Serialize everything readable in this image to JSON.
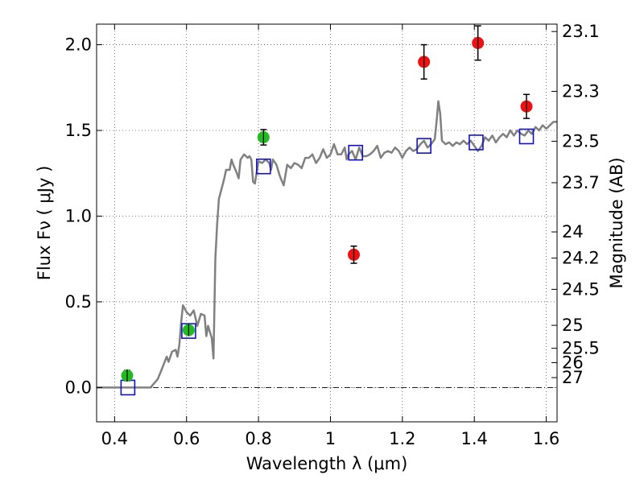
{
  "chart_data": {
    "type": "scatter",
    "title": "",
    "xlabel": "Wavelength  λ (μm)",
    "ylabel": "Flux  Fν  ( μJy )",
    "ylabel_right": "Magnitude (AB)",
    "xlim": [
      0.35,
      1.63
    ],
    "ylim": [
      -0.2,
      2.12
    ],
    "x_ticks": [
      {
        "value": 0.4,
        "label": "0.4"
      },
      {
        "value": 0.6,
        "label": "0.6"
      },
      {
        "value": 0.8,
        "label": "0.8"
      },
      {
        "value": 1.0,
        "label": "1"
      },
      {
        "value": 1.2,
        "label": "1.2"
      },
      {
        "value": 1.4,
        "label": "1.4"
      },
      {
        "value": 1.6,
        "label": "1.6"
      }
    ],
    "y_ticks": [
      {
        "value": 0.0,
        "label": "0.0"
      },
      {
        "value": 0.5,
        "label": "0.5"
      },
      {
        "value": 1.0,
        "label": "1.0"
      },
      {
        "value": 1.5,
        "label": "1.5"
      },
      {
        "value": 2.0,
        "label": "2.0"
      }
    ],
    "magnitude_ticks": [
      {
        "label": "23.1",
        "flux": 2.077
      },
      {
        "label": "23.3",
        "flux": 1.728
      },
      {
        "label": "23.5",
        "flux": 1.437
      },
      {
        "label": "23.7",
        "flux": 1.195
      },
      {
        "label": "24",
        "flux": 0.908
      },
      {
        "label": "24.2",
        "flux": 0.755
      },
      {
        "label": "24.5",
        "flux": 0.573
      },
      {
        "label": "25",
        "flux": 0.363
      },
      {
        "label": "25.5",
        "flux": 0.229
      },
      {
        "label": "26",
        "flux": 0.145
      },
      {
        "label": "27",
        "flux": 0.058
      }
    ],
    "grid": true,
    "zero_line": true,
    "series": [
      {
        "marker": "circle",
        "color": "#22bb22",
        "points": [
          {
            "x": 0.435,
            "y": 0.07,
            "err": 0.03
          },
          {
            "x": 0.606,
            "y": 0.335,
            "err": 0.025
          },
          {
            "x": 0.814,
            "y": 1.46,
            "err": 0.045
          }
        ]
      },
      {
        "marker": "circle",
        "color": "#ee1111",
        "points": [
          {
            "x": 1.065,
            "y": 0.775,
            "err": 0.05
          },
          {
            "x": 1.26,
            "y": 1.9,
            "err": 0.1
          },
          {
            "x": 1.41,
            "y": 2.01,
            "err": 0.1
          },
          {
            "x": 1.545,
            "y": 1.64,
            "err": 0.07
          }
        ]
      },
      {
        "marker": "square",
        "color": "#1111cc",
        "points": [
          {
            "x": 0.437,
            "y": 0.0
          },
          {
            "x": 0.606,
            "y": 0.33
          },
          {
            "x": 0.814,
            "y": 1.29
          },
          {
            "x": 1.07,
            "y": 1.37
          },
          {
            "x": 1.26,
            "y": 1.41
          },
          {
            "x": 1.405,
            "y": 1.43
          },
          {
            "x": 1.545,
            "y": 1.465
          }
        ]
      },
      {
        "marker": "line",
        "color": "#808080",
        "points": [
          [
            0.35,
            0.0
          ],
          [
            0.5,
            0.0
          ],
          [
            0.52,
            0.05
          ],
          [
            0.53,
            0.1
          ],
          [
            0.545,
            0.18
          ],
          [
            0.55,
            0.15
          ],
          [
            0.56,
            0.21
          ],
          [
            0.57,
            0.22
          ],
          [
            0.575,
            0.18
          ],
          [
            0.58,
            0.25
          ],
          [
            0.585,
            0.38
          ],
          [
            0.59,
            0.48
          ],
          [
            0.6,
            0.44
          ],
          [
            0.61,
            0.42
          ],
          [
            0.62,
            0.45
          ],
          [
            0.63,
            0.36
          ],
          [
            0.64,
            0.43
          ],
          [
            0.65,
            0.42
          ],
          [
            0.655,
            0.3
          ],
          [
            0.66,
            0.36
          ],
          [
            0.67,
            0.29
          ],
          [
            0.675,
            0.17
          ],
          [
            0.68,
            0.75
          ],
          [
            0.685,
            0.95
          ],
          [
            0.69,
            1.1
          ],
          [
            0.7,
            1.18
          ],
          [
            0.705,
            1.22
          ],
          [
            0.71,
            1.27
          ],
          [
            0.72,
            1.27
          ],
          [
            0.725,
            1.33
          ],
          [
            0.73,
            1.3
          ],
          [
            0.74,
            1.25
          ],
          [
            0.745,
            1.22
          ],
          [
            0.75,
            1.33
          ],
          [
            0.76,
            1.36
          ],
          [
            0.77,
            1.34
          ],
          [
            0.775,
            1.35
          ],
          [
            0.78,
            1.33
          ],
          [
            0.785,
            1.2
          ],
          [
            0.79,
            1.19
          ],
          [
            0.8,
            1.32
          ],
          [
            0.81,
            1.31
          ],
          [
            0.82,
            1.33
          ],
          [
            0.83,
            1.31
          ],
          [
            0.835,
            1.27
          ],
          [
            0.84,
            1.33
          ],
          [
            0.85,
            1.3
          ],
          [
            0.86,
            1.23
          ],
          [
            0.87,
            1.18
          ],
          [
            0.88,
            1.3
          ],
          [
            0.89,
            1.28
          ],
          [
            0.9,
            1.31
          ],
          [
            0.91,
            1.3
          ],
          [
            0.92,
            1.28
          ],
          [
            0.93,
            1.34
          ],
          [
            0.94,
            1.34
          ],
          [
            0.95,
            1.36
          ],
          [
            0.96,
            1.31
          ],
          [
            0.97,
            1.34
          ],
          [
            0.98,
            1.39
          ],
          [
            0.99,
            1.34
          ],
          [
            1.0,
            1.36
          ],
          [
            1.01,
            1.42
          ],
          [
            1.02,
            1.36
          ],
          [
            1.03,
            1.36
          ],
          [
            1.04,
            1.4
          ],
          [
            1.045,
            1.33
          ],
          [
            1.05,
            1.36
          ],
          [
            1.06,
            1.38
          ],
          [
            1.07,
            1.33
          ],
          [
            1.08,
            1.4
          ],
          [
            1.09,
            1.35
          ],
          [
            1.1,
            1.35
          ],
          [
            1.11,
            1.36
          ],
          [
            1.12,
            1.38
          ],
          [
            1.13,
            1.41
          ],
          [
            1.14,
            1.34
          ],
          [
            1.15,
            1.37
          ],
          [
            1.16,
            1.38
          ],
          [
            1.17,
            1.37
          ],
          [
            1.18,
            1.4
          ],
          [
            1.19,
            1.38
          ],
          [
            1.2,
            1.34
          ],
          [
            1.21,
            1.38
          ],
          [
            1.22,
            1.4
          ],
          [
            1.23,
            1.38
          ],
          [
            1.24,
            1.39
          ],
          [
            1.25,
            1.42
          ],
          [
            1.26,
            1.44
          ],
          [
            1.27,
            1.4
          ],
          [
            1.28,
            1.42
          ],
          [
            1.29,
            1.45
          ],
          [
            1.295,
            1.55
          ],
          [
            1.3,
            1.67
          ],
          [
            1.305,
            1.6
          ],
          [
            1.31,
            1.44
          ],
          [
            1.32,
            1.42
          ],
          [
            1.33,
            1.43
          ],
          [
            1.34,
            1.41
          ],
          [
            1.35,
            1.43
          ],
          [
            1.36,
            1.42
          ],
          [
            1.37,
            1.44
          ],
          [
            1.38,
            1.42
          ],
          [
            1.39,
            1.44
          ],
          [
            1.4,
            1.41
          ],
          [
            1.41,
            1.38
          ],
          [
            1.42,
            1.41
          ],
          [
            1.43,
            1.46
          ],
          [
            1.44,
            1.44
          ],
          [
            1.45,
            1.47
          ],
          [
            1.46,
            1.43
          ],
          [
            1.47,
            1.46
          ],
          [
            1.48,
            1.48
          ],
          [
            1.49,
            1.46
          ],
          [
            1.5,
            1.5
          ],
          [
            1.51,
            1.47
          ],
          [
            1.52,
            1.5
          ],
          [
            1.53,
            1.48
          ],
          [
            1.54,
            1.47
          ],
          [
            1.55,
            1.5
          ],
          [
            1.56,
            1.48
          ],
          [
            1.57,
            1.52
          ],
          [
            1.58,
            1.5
          ],
          [
            1.59,
            1.53
          ],
          [
            1.6,
            1.51
          ],
          [
            1.61,
            1.53
          ],
          [
            1.62,
            1.55
          ],
          [
            1.63,
            1.55
          ]
        ]
      }
    ]
  }
}
